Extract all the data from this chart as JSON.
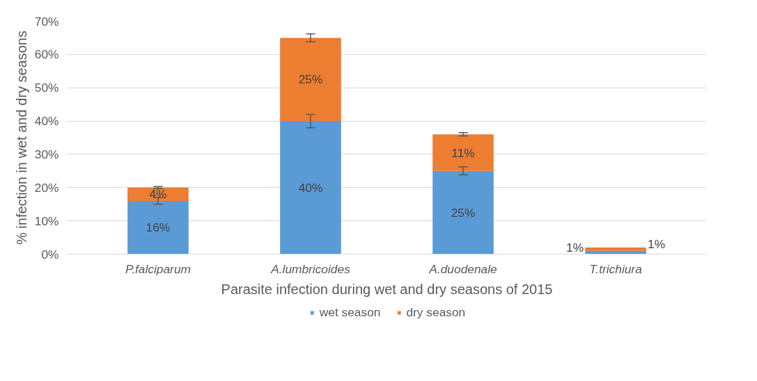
{
  "chart_data": {
    "type": "bar",
    "stacked": true,
    "xlabel": "Parasite infection during wet and dry seasons of 2015",
    "ylabel": "% infection in wet and dry seasons",
    "categories": [
      "P.falciparum",
      "A.lumbricoides",
      "A.duodenale",
      "T.trichiura"
    ],
    "series": [
      {
        "name": "wet season",
        "color": "#5b9bd5",
        "values": [
          16,
          40,
          25,
          1
        ],
        "value_labels": [
          "16%",
          "40%",
          "25%",
          "1%"
        ],
        "errors": [
          1,
          2,
          1.2,
          null
        ]
      },
      {
        "name": "dry season",
        "color": "#ed7d31",
        "values": [
          4,
          25,
          11,
          1
        ],
        "value_labels": [
          "4%",
          "25%",
          "11%",
          "1%"
        ],
        "errors": [
          0.3,
          1.2,
          0.5,
          null
        ]
      }
    ],
    "ylim": [
      0,
      70
    ],
    "yticks": [
      {
        "value": 0,
        "label": "0%"
      },
      {
        "value": 10,
        "label": "10%"
      },
      {
        "value": 20,
        "label": "20%"
      },
      {
        "value": 30,
        "label": "30%"
      },
      {
        "value": 40,
        "label": "40%"
      },
      {
        "value": 50,
        "label": "50%"
      },
      {
        "value": 60,
        "label": "60%"
      },
      {
        "value": 70,
        "label": "70%"
      }
    ],
    "grid": "y",
    "legend": "bottom"
  }
}
